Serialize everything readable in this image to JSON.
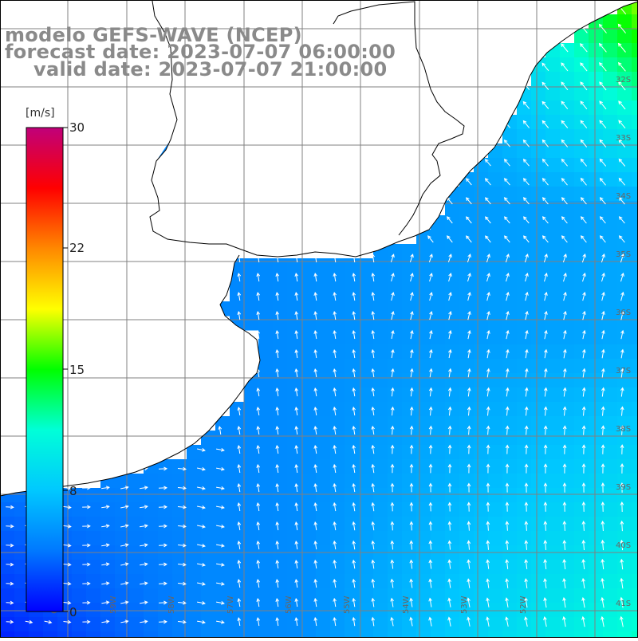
{
  "title": {
    "line1": "modelo GEFS-WAVE (NCEP)",
    "line2": "forecast date: 2023-07-07 06:00:00",
    "line3": "valid date: 2023-07-07 21:00:00"
  },
  "colorbar": {
    "unit": "[m/s]",
    "ticks": [
      "30",
      "22",
      "15",
      "8",
      "0"
    ],
    "min": 0,
    "max": 30,
    "colors": [
      "#0000ff",
      "#0078ff",
      "#00c8ff",
      "#00ffd8",
      "#00ff00",
      "#ffff00",
      "#ff8800",
      "#ff0000",
      "#c0007a"
    ]
  },
  "map": {
    "variable": "wind speed and direction",
    "lat_labels": [
      "32S",
      "33S",
      "34S",
      "35S",
      "36S",
      "37S",
      "38S",
      "39S",
      "40S",
      "41S"
    ],
    "lon_labels": [
      "60W",
      "59W",
      "58W",
      "57W",
      "56W",
      "55W",
      "54W",
      "53W",
      "52W"
    ],
    "land_color": "#ffffff",
    "coast_color": "#000000",
    "grid_color": "#808080"
  }
}
